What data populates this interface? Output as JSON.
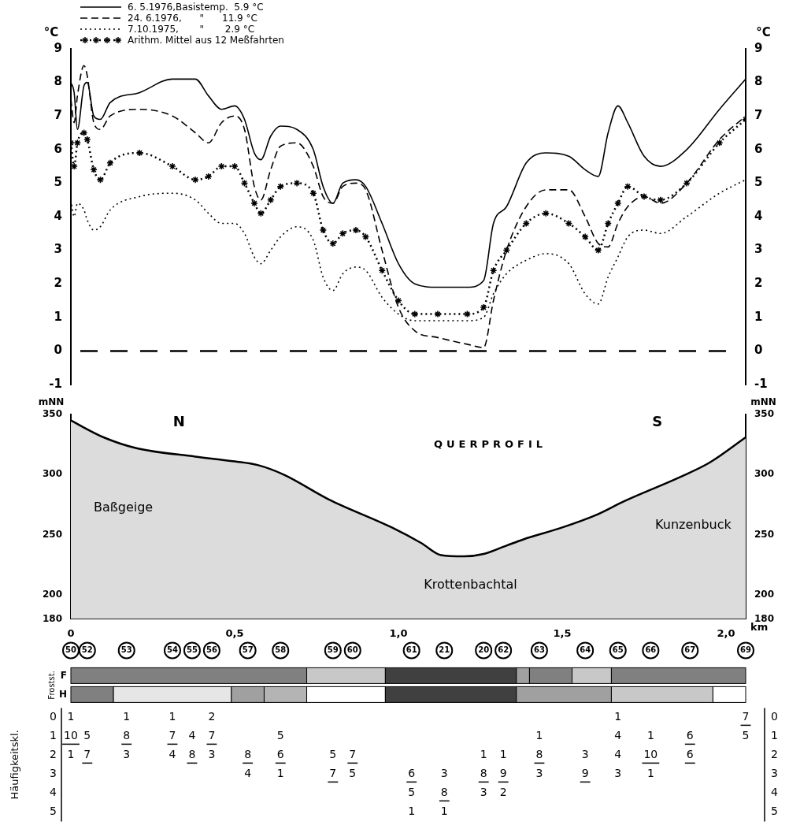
{
  "chart_data": [
    {
      "type": "line",
      "y_label": "°C",
      "legend": "top left",
      "grid": false,
      "tick_labels": "y",
      "xlim": [
        0,
        2.06
      ],
      "ylim": [
        -1,
        9
      ],
      "yticks": [
        -1,
        0,
        1,
        2,
        3,
        4,
        5,
        6,
        7,
        8,
        9
      ],
      "y2lim": [
        -1,
        9
      ],
      "y2ticks": [
        -1,
        0,
        1,
        2,
        3,
        4,
        5,
        6,
        7,
        8,
        9
      ],
      "reference_lines": [
        {
          "y": 0,
          "line_style": "dashed"
        }
      ],
      "series": [
        {
          "name": "6. 5.1976,Basistemp.  5.9 °C",
          "color": "#000000",
          "line_style": "solid",
          "marker": "none",
          "x": [
            0,
            0.01,
            0.02,
            0.04,
            0.05,
            0.07,
            0.09,
            0.12,
            0.21,
            0.31,
            0.38,
            0.42,
            0.46,
            0.5,
            0.53,
            0.56,
            0.58,
            0.61,
            0.64,
            0.69,
            0.74,
            0.77,
            0.8,
            0.83,
            0.87,
            0.9,
            0.95,
            1.0,
            1.05,
            1.12,
            1.21,
            1.26,
            1.29,
            1.33,
            1.39,
            1.45,
            1.52,
            1.57,
            1.61,
            1.64,
            1.67,
            1.7,
            1.75,
            1.8,
            1.88,
            1.98,
            2.06
          ],
          "values": [
            8.0,
            7.7,
            6.6,
            7.9,
            8.0,
            7.0,
            6.9,
            7.4,
            7.7,
            8.1,
            8.1,
            7.6,
            7.2,
            7.3,
            6.9,
            5.9,
            5.7,
            6.4,
            6.7,
            6.6,
            6.0,
            4.9,
            4.4,
            5.0,
            5.1,
            4.9,
            3.8,
            2.6,
            2.0,
            1.9,
            1.9,
            2.1,
            3.8,
            4.3,
            5.6,
            5.9,
            5.8,
            5.4,
            5.2,
            6.5,
            7.3,
            6.8,
            5.8,
            5.5,
            6.0,
            7.2,
            8.1
          ]
        },
        {
          "name": "24. 6.1976,      \"      11.9 °C",
          "color": "#000000",
          "line_style": "dashed",
          "marker": "none",
          "x": [
            0,
            0.01,
            0.02,
            0.04,
            0.05,
            0.07,
            0.09,
            0.12,
            0.21,
            0.31,
            0.38,
            0.42,
            0.46,
            0.5,
            0.53,
            0.56,
            0.58,
            0.61,
            0.64,
            0.69,
            0.74,
            0.77,
            0.8,
            0.83,
            0.87,
            0.9,
            0.95,
            1.0,
            1.05,
            1.12,
            1.21,
            1.26,
            1.29,
            1.33,
            1.39,
            1.45,
            1.52,
            1.57,
            1.61,
            1.64,
            1.67,
            1.7,
            1.75,
            1.8,
            1.88,
            1.98,
            2.06
          ],
          "values": [
            7.5,
            6.8,
            7.6,
            8.5,
            8.2,
            6.8,
            6.6,
            7.0,
            7.2,
            7.0,
            6.5,
            6.2,
            6.8,
            7.0,
            6.6,
            4.9,
            4.5,
            5.4,
            6.1,
            6.2,
            5.5,
            4.6,
            4.4,
            4.9,
            5.0,
            4.8,
            3.0,
            1.3,
            0.6,
            0.4,
            0.2,
            0.1,
            1.5,
            3.0,
            4.3,
            4.8,
            4.8,
            4.0,
            3.2,
            3.1,
            3.8,
            4.3,
            4.6,
            4.4,
            5.0,
            6.3,
            7.0
          ]
        },
        {
          "name": "7.10.1975,       \"       2.9 °C",
          "color": "#000000",
          "line_style": "dotted",
          "marker": "none",
          "x": [
            0,
            0.01,
            0.02,
            0.04,
            0.05,
            0.07,
            0.09,
            0.12,
            0.21,
            0.31,
            0.38,
            0.42,
            0.46,
            0.5,
            0.53,
            0.56,
            0.58,
            0.61,
            0.64,
            0.69,
            0.74,
            0.77,
            0.8,
            0.83,
            0.87,
            0.9,
            0.95,
            1.0,
            1.05,
            1.12,
            1.21,
            1.26,
            1.29,
            1.33,
            1.39,
            1.45,
            1.52,
            1.57,
            1.61,
            1.64,
            1.67,
            1.7,
            1.75,
            1.8,
            1.88,
            1.98,
            2.06
          ],
          "values": [
            4.5,
            4.0,
            4.4,
            4.2,
            3.9,
            3.6,
            3.7,
            4.2,
            4.6,
            4.7,
            4.5,
            4.1,
            3.8,
            3.8,
            3.5,
            2.8,
            2.6,
            3.0,
            3.4,
            3.7,
            3.3,
            2.2,
            1.8,
            2.3,
            2.5,
            2.4,
            1.6,
            1.1,
            0.9,
            0.9,
            0.9,
            1.0,
            1.7,
            2.3,
            2.7,
            2.9,
            2.6,
            1.7,
            1.4,
            2.2,
            2.8,
            3.4,
            3.6,
            3.5,
            4.0,
            4.7,
            5.1
          ]
        },
        {
          "name": "Arithm. Mittel aus 12 Meßfahrten",
          "color": "#000000",
          "line_style": "dotted",
          "marker": "star",
          "x": [
            0,
            0.01,
            0.02,
            0.04,
            0.05,
            0.07,
            0.09,
            0.12,
            0.21,
            0.31,
            0.38,
            0.42,
            0.46,
            0.5,
            0.53,
            0.56,
            0.58,
            0.61,
            0.64,
            0.69,
            0.74,
            0.77,
            0.8,
            0.83,
            0.87,
            0.9,
            0.95,
            1.0,
            1.05,
            1.12,
            1.21,
            1.26,
            1.29,
            1.33,
            1.39,
            1.45,
            1.52,
            1.57,
            1.61,
            1.64,
            1.67,
            1.7,
            1.75,
            1.8,
            1.88,
            1.98,
            2.06
          ],
          "values": [
            6.2,
            5.5,
            6.2,
            6.5,
            6.3,
            5.4,
            5.1,
            5.6,
            5.9,
            5.5,
            5.1,
            5.2,
            5.5,
            5.5,
            5.0,
            4.4,
            4.1,
            4.5,
            4.9,
            5.0,
            4.7,
            3.6,
            3.2,
            3.5,
            3.6,
            3.4,
            2.4,
            1.5,
            1.1,
            1.1,
            1.1,
            1.3,
            2.4,
            3.0,
            3.8,
            4.1,
            3.8,
            3.4,
            3.0,
            3.8,
            4.4,
            4.9,
            4.6,
            4.5,
            5.0,
            6.2,
            6.9
          ]
        }
      ]
    },
    {
      "type": "area",
      "y_label": "mNN",
      "x_label": "km",
      "grid": false,
      "color": "#dcdcdc",
      "xlim": [
        0,
        2.06
      ],
      "xticks": [
        0,
        {
          "value": 0.5,
          "label": "0,5"
        },
        {
          "value": 1.0,
          "label": "1,0"
        },
        {
          "value": 1.5,
          "label": "1,5"
        },
        {
          "value": 2.0,
          "label": "2,0"
        }
      ],
      "ylim": [
        180,
        350
      ],
      "yticks": [
        180,
        200,
        250,
        300,
        350
      ],
      "y2lim": [
        180,
        350
      ],
      "y2ticks": [
        180,
        200,
        250,
        300,
        350
      ],
      "x": [
        0,
        0.1,
        0.2,
        0.38,
        0.5,
        0.57,
        0.65,
        0.79,
        0.98,
        1.07,
        1.13,
        1.2,
        1.26,
        1.33,
        1.38,
        1.5,
        1.6,
        1.69,
        1.86,
        1.95,
        2.06
      ],
      "values": [
        345,
        331,
        322,
        315,
        311,
        308,
        300,
        279,
        256,
        243,
        233,
        232,
        234,
        241,
        246,
        256,
        266,
        278,
        298,
        310,
        331
      ],
      "annotations": [
        {
          "text": "N",
          "x": 0.33,
          "y": 343
        },
        {
          "text": "S",
          "x": 1.79,
          "y": 343
        },
        {
          "text": "QUERPROFIL",
          "x": 1.28,
          "y": 325
        },
        {
          "text": "Baßgeige",
          "x": 0.16,
          "y": 272
        },
        {
          "text": "Kunzenbuck",
          "x": 1.9,
          "y": 258
        },
        {
          "text": "Krottenbachtal",
          "x": 1.22,
          "y": 208
        }
      ]
    }
  ],
  "stations": [
    {
      "station": 50,
      "km": 0.0,
      "counts": [
        1,
        10,
        1,
        null,
        null,
        null
      ],
      "underlined": [
        1
      ]
    },
    {
      "station": 52,
      "km": 0.05,
      "counts": [
        null,
        5,
        7,
        null,
        null,
        null
      ],
      "underlined": [
        2
      ]
    },
    {
      "station": 53,
      "km": 0.17,
      "counts": [
        1,
        8,
        3,
        null,
        null,
        null
      ],
      "underlined": [
        1
      ]
    },
    {
      "station": 54,
      "km": 0.31,
      "counts": [
        1,
        7,
        4,
        null,
        null,
        null
      ],
      "underlined": [
        1
      ]
    },
    {
      "station": 55,
      "km": 0.37,
      "counts": [
        null,
        4,
        8,
        null,
        null,
        null
      ],
      "underlined": [
        2
      ]
    },
    {
      "station": 56,
      "km": 0.43,
      "counts": [
        2,
        7,
        3,
        null,
        null,
        null
      ],
      "underlined": [
        1
      ]
    },
    {
      "station": 57,
      "km": 0.54,
      "counts": [
        null,
        null,
        8,
        4,
        null,
        null
      ],
      "underlined": [
        2
      ]
    },
    {
      "station": 58,
      "km": 0.64,
      "counts": [
        null,
        5,
        6,
        1,
        null,
        null
      ],
      "underlined": [
        2
      ]
    },
    {
      "station": 59,
      "km": 0.8,
      "counts": [
        null,
        null,
        5,
        7,
        null,
        null
      ],
      "underlined": [
        3
      ]
    },
    {
      "station": 60,
      "km": 0.86,
      "counts": [
        null,
        null,
        7,
        5,
        null,
        null
      ],
      "underlined": [
        2
      ]
    },
    {
      "station": 61,
      "km": 1.04,
      "counts": [
        null,
        null,
        null,
        6,
        5,
        1
      ],
      "underlined": [
        3
      ]
    },
    {
      "station": 21,
      "km": 1.14,
      "counts": [
        null,
        null,
        null,
        3,
        8,
        1
      ],
      "underlined": [
        4
      ]
    },
    {
      "station": 20,
      "km": 1.26,
      "counts": [
        null,
        null,
        1,
        8,
        3,
        null
      ],
      "underlined": [
        3
      ]
    },
    {
      "station": 62,
      "km": 1.32,
      "counts": [
        null,
        null,
        1,
        9,
        2,
        null
      ],
      "underlined": [
        3
      ]
    },
    {
      "station": 63,
      "km": 1.43,
      "counts": [
        null,
        1,
        8,
        3,
        null,
        null
      ],
      "underlined": [
        2
      ]
    },
    {
      "station": 64,
      "km": 1.57,
      "counts": [
        null,
        null,
        3,
        9,
        null,
        null
      ],
      "underlined": [
        3
      ]
    },
    {
      "station": 65,
      "km": 1.67,
      "counts": [
        1,
        4,
        4,
        3,
        null,
        null
      ],
      "underlined": []
    },
    {
      "station": 66,
      "km": 1.77,
      "counts": [
        null,
        1,
        10,
        1,
        null,
        null
      ],
      "underlined": [
        2
      ]
    },
    {
      "station": 67,
      "km": 1.89,
      "counts": [
        null,
        6,
        6,
        null,
        null,
        null
      ],
      "underlined": [
        1,
        2
      ]
    },
    {
      "station": 69,
      "km": 2.06,
      "counts": [
        7,
        5,
        null,
        null,
        null,
        null
      ],
      "underlined": [
        0
      ]
    }
  ],
  "frost_title": "Frostst.",
  "frost_rows": [
    {
      "label": "F",
      "segments": [
        {
          "from": 0,
          "to": 0.72,
          "color": "#808080"
        },
        {
          "from": 0.72,
          "to": 0.96,
          "color": "#c8c8c8"
        },
        {
          "from": 0.96,
          "to": 1.36,
          "color": "#404040"
        },
        {
          "from": 1.36,
          "to": 1.4,
          "color": "#a0a0a0"
        },
        {
          "from": 1.4,
          "to": 1.53,
          "color": "#808080"
        },
        {
          "from": 1.53,
          "to": 1.65,
          "color": "#c8c8c8"
        },
        {
          "from": 1.65,
          "to": 2.06,
          "color": "#808080"
        }
      ]
    },
    {
      "label": "H",
      "segments": [
        {
          "from": 0,
          "to": 0.13,
          "color": "#808080"
        },
        {
          "from": 0.13,
          "to": 0.49,
          "color": "#e6e6e6"
        },
        {
          "from": 0.49,
          "to": 0.59,
          "color": "#a0a0a0"
        },
        {
          "from": 0.59,
          "to": 0.72,
          "color": "#b4b4b4"
        },
        {
          "from": 0.72,
          "to": 0.96,
          "color": "#ffffff"
        },
        {
          "from": 0.96,
          "to": 1.36,
          "color": "#404040"
        },
        {
          "from": 1.36,
          "to": 1.65,
          "color": "#a0a0a0"
        },
        {
          "from": 1.65,
          "to": 1.96,
          "color": "#c8c8c8"
        },
        {
          "from": 1.96,
          "to": 2.06,
          "color": "#ffffff"
        }
      ]
    }
  ],
  "frequency_title": "Häufigkeitskl.",
  "frequency_classes": [
    0,
    1,
    2,
    3,
    4,
    5
  ]
}
